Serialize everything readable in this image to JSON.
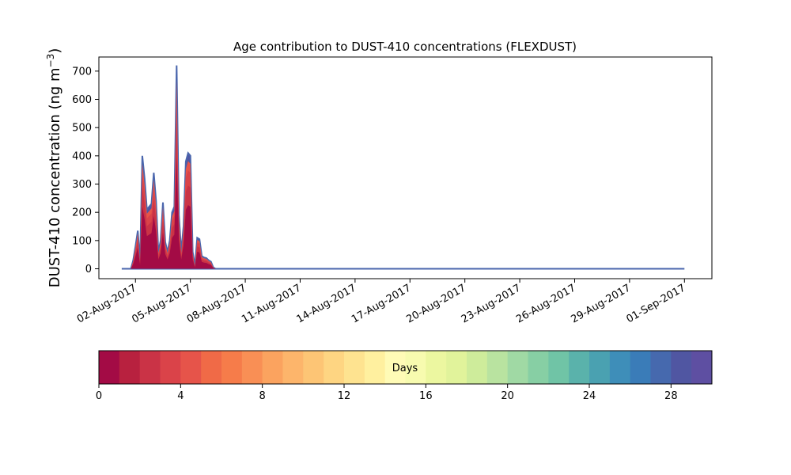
{
  "chart_data": {
    "type": "area",
    "title": "Age contribution to DUST-410 concentrations (FLEXDUST)",
    "xlabel": "",
    "ylabel": "DUST-410 concentration (ng m",
    "ylabel_superscript": "−3",
    "ylabel_close": ")",
    "x_axis": "date",
    "xlim": [
      "2017-07-31T00:00",
      "2017-09-02T12:00"
    ],
    "ylim": [
      -35,
      750
    ],
    "x_ticks": [
      "02-Aug-2017",
      "05-Aug-2017",
      "08-Aug-2017",
      "11-Aug-2017",
      "14-Aug-2017",
      "17-Aug-2017",
      "20-Aug-2017",
      "23-Aug-2017",
      "26-Aug-2017",
      "29-Aug-2017",
      "01-Sep-2017"
    ],
    "x_tick_dates": [
      "2017-08-02",
      "2017-08-05",
      "2017-08-08",
      "2017-08-11",
      "2017-08-14",
      "2017-08-17",
      "2017-08-20",
      "2017-08-23",
      "2017-08-26",
      "2017-08-29",
      "2017-09-01"
    ],
    "y_ticks": [
      "0",
      "100",
      "200",
      "300",
      "400",
      "500",
      "600",
      "700"
    ],
    "y_tick_values": [
      0,
      100,
      200,
      300,
      400,
      500,
      600,
      700
    ],
    "grid": false,
    "legend": "none",
    "total_series": {
      "x": [
        "2017-08-01T06:00",
        "2017-08-01T12:00",
        "2017-08-01T18:00",
        "2017-08-01T21:00",
        "2017-08-02T00:00",
        "2017-08-02T03:00",
        "2017-08-02T06:00",
        "2017-08-02T09:00",
        "2017-08-02T12:00",
        "2017-08-02T15:00",
        "2017-08-02T18:00",
        "2017-08-02T21:00",
        "2017-08-03T00:00",
        "2017-08-03T03:00",
        "2017-08-03T06:00",
        "2017-08-03T09:00",
        "2017-08-03T12:00",
        "2017-08-03T15:00",
        "2017-08-03T18:00",
        "2017-08-03T21:00",
        "2017-08-04T00:00",
        "2017-08-04T03:00",
        "2017-08-04T06:00",
        "2017-08-04T09:00",
        "2017-08-04T12:00",
        "2017-08-04T15:00",
        "2017-08-04T18:00",
        "2017-08-04T21:00",
        "2017-08-05T00:00",
        "2017-08-05T03:00",
        "2017-08-05T06:00",
        "2017-08-05T09:00",
        "2017-08-05T12:00",
        "2017-08-05T15:00",
        "2017-08-05T18:00",
        "2017-08-05T21:00",
        "2017-08-06T00:00",
        "2017-08-06T03:00",
        "2017-08-06T06:00",
        "2017-08-06T09:00",
        "2017-08-06T12:00",
        "2017-08-06T15:00",
        "2017-08-06T18:00",
        "2017-08-07T00:00",
        "2017-08-07T12:00",
        "2017-08-08T00:00",
        "2017-08-08T12:00",
        "2017-08-09T00:00",
        "2017-08-09T06:00",
        "2017-08-09T12:00",
        "2017-08-09T18:00",
        "2017-08-10T00:00",
        "2017-08-10T06:00",
        "2017-08-10T12:00",
        "2017-08-10T18:00",
        "2017-08-11T00:00",
        "2017-08-12T00:00",
        "2017-08-14T00:00",
        "2017-08-16T00:00",
        "2017-08-17T00:00",
        "2017-08-18T00:00",
        "2017-08-20T00:00",
        "2017-08-22T00:00",
        "2017-08-24T00:00",
        "2017-08-25T00:00",
        "2017-08-26T00:00",
        "2017-08-26T12:00",
        "2017-08-27T00:00",
        "2017-08-27T12:00",
        "2017-08-28T00:00",
        "2017-08-29T00:00",
        "2017-08-30T00:00",
        "2017-08-30T12:00",
        "2017-08-31T00:00",
        "2017-08-31T06:00",
        "2017-08-31T12:00",
        "2017-08-31T18:00",
        "2017-09-01T00:00"
      ],
      "y": [
        0,
        0,
        0,
        30,
        80,
        135,
        25,
        400,
        320,
        210,
        220,
        230,
        340,
        240,
        60,
        100,
        235,
        95,
        60,
        100,
        200,
        220,
        720,
        190,
        60,
        150,
        380,
        410,
        400,
        60,
        10,
        110,
        105,
        45,
        40,
        38,
        30,
        25,
        5,
        0,
        0,
        0,
        0,
        0,
        0,
        0,
        0,
        0,
        0,
        0,
        0,
        0,
        0,
        0,
        0,
        0,
        0,
        0,
        0,
        0,
        0,
        0,
        0,
        0,
        0,
        0,
        0,
        0,
        0,
        0,
        0,
        0,
        0,
        0,
        0,
        0,
        0,
        0
      ]
    },
    "age_colorbar": {
      "label": "Days",
      "range": [
        0,
        30
      ],
      "ticks": [
        "0",
        "4",
        "8",
        "12",
        "16",
        "20",
        "24",
        "28"
      ],
      "tick_values": [
        0,
        4,
        8,
        12,
        16,
        20,
        24,
        28
      ],
      "colors": [
        "#a30b45",
        "#b8213f",
        "#ca3346",
        "#da4349",
        "#e6544a",
        "#f06a47",
        "#f67c4a",
        "#f98f55",
        "#fba35f",
        "#fdb56b",
        "#fdc575",
        "#fed582",
        "#fee390",
        "#fff09f",
        "#fffbb6",
        "#f7fbaf",
        "#ecf7a0",
        "#e1f39b",
        "#ceec9b",
        "#b9e3a0",
        "#a0d9a4",
        "#87cfa4",
        "#70c4a6",
        "#5ab2ab",
        "#4aa1b1",
        "#3e8eb9",
        "#3a7cb8",
        "#4669ae",
        "#5056a2",
        "#5e4fa2"
      ]
    }
  }
}
